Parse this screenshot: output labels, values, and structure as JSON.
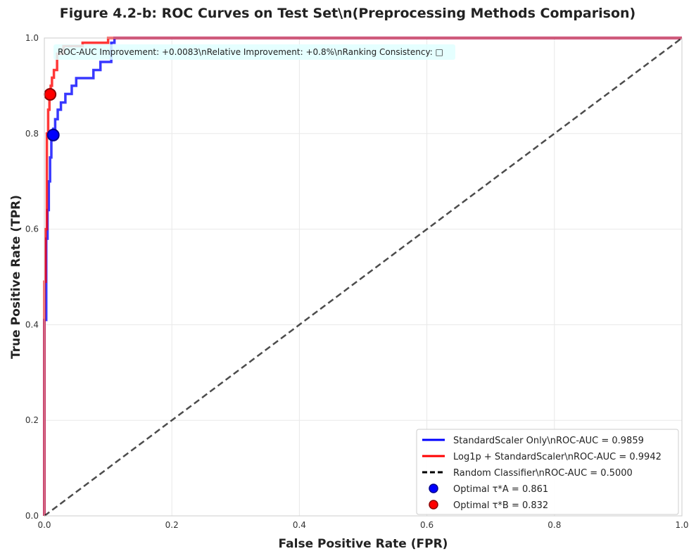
{
  "chart_data": {
    "type": "line",
    "title": "Figure 4.2-b: ROC Curves on Test Set\\n(Preprocessing Methods Comparison)",
    "xlabel": "False Positive Rate (FPR)",
    "ylabel": "True Positive Rate (TPR)",
    "xlim": [
      0,
      1
    ],
    "ylim": [
      0,
      1
    ],
    "xticks": [
      "0.0",
      "0.2",
      "0.4",
      "0.6",
      "0.8",
      "1.0"
    ],
    "yticks": [
      "0.0",
      "0.2",
      "0.4",
      "0.6",
      "0.8",
      "1.0"
    ],
    "grid": true,
    "legend_position": "lower-right",
    "annotation": "ROC-AUC Improvement: +0.0083\\nRelative Improvement: +0.8%\\nRanking Consistency: □",
    "series": [
      {
        "name": "StandardScaler Only\\nROC-AUC = 0.9859",
        "color": "#0000ff",
        "style": "solid",
        "x": [
          0.0,
          0.0,
          0.003,
          0.003,
          0.005,
          0.005,
          0.007,
          0.007,
          0.009,
          0.009,
          0.011,
          0.011,
          0.014,
          0.014,
          0.017,
          0.017,
          0.021,
          0.021,
          0.026,
          0.026,
          0.033,
          0.033,
          0.043,
          0.043,
          0.05,
          0.05,
          0.077,
          0.077,
          0.088,
          0.088,
          0.105,
          0.105,
          0.11,
          0.11,
          1.0
        ],
        "y": [
          0.0,
          0.41,
          0.41,
          0.58,
          0.58,
          0.64,
          0.64,
          0.7,
          0.7,
          0.75,
          0.75,
          0.8,
          0.8,
          0.81,
          0.81,
          0.83,
          0.83,
          0.85,
          0.85,
          0.865,
          0.865,
          0.883,
          0.883,
          0.9,
          0.9,
          0.916,
          0.916,
          0.933,
          0.933,
          0.95,
          0.95,
          0.99,
          0.99,
          1.0,
          1.0
        ]
      },
      {
        "name": "Log1p + StandardScaler\\nROC-AUC = 0.9942",
        "color": "#ff0000",
        "style": "solid",
        "x": [
          0.0,
          0.0,
          0.002,
          0.002,
          0.004,
          0.004,
          0.006,
          0.006,
          0.008,
          0.008,
          0.01,
          0.01,
          0.012,
          0.012,
          0.015,
          0.015,
          0.02,
          0.02,
          0.03,
          0.03,
          0.06,
          0.06,
          0.1,
          0.1,
          1.0
        ],
        "y": [
          0.0,
          0.49,
          0.49,
          0.6,
          0.6,
          0.8,
          0.8,
          0.85,
          0.85,
          0.88,
          0.88,
          0.9,
          0.9,
          0.917,
          0.917,
          0.933,
          0.933,
          0.967,
          0.967,
          0.983,
          0.983,
          0.99,
          0.99,
          1.0,
          1.0
        ]
      },
      {
        "name": "Random Classifier\\nROC-AUC = 0.5000",
        "color": "#000000",
        "style": "dashed",
        "x": [
          0,
          1
        ],
        "y": [
          0,
          1
        ]
      }
    ],
    "points": [
      {
        "name": "Optimal τ*A = 0.861",
        "x": 0.014,
        "y": 0.797,
        "color": "#0000ff"
      },
      {
        "name": "Optimal τ*B = 0.832",
        "x": 0.009,
        "y": 0.882,
        "color": "#ff0000"
      }
    ]
  }
}
